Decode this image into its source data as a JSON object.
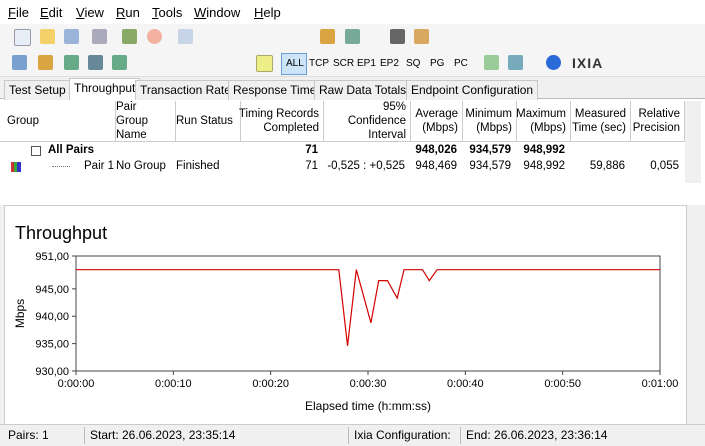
{
  "menu": [
    "File",
    "Edit",
    "View",
    "Run",
    "Tools",
    "Window",
    "Help"
  ],
  "toolbar": {
    "protocols": [
      "ALL",
      "TCP",
      "SCR",
      "EP1",
      "EP2",
      "SQ",
      "PG",
      "PC"
    ],
    "brand": "IXIA"
  },
  "tabs": [
    "Test Setup",
    "Throughput",
    "Transaction Rate",
    "Response Time",
    "Raw Data Totals",
    "Endpoint Configuration"
  ],
  "table": {
    "headers": [
      "Group",
      "Pair Group Name",
      "Run Status",
      "Timing Records Completed",
      "95% Confidence Interval",
      "Average (Mbps)",
      "Minimum (Mbps)",
      "Maximum (Mbps)",
      "Measured Time (sec)",
      "Relative Precision"
    ],
    "rows": [
      [
        "All Pairs",
        null,
        null,
        "71",
        null,
        "948,026",
        "934,579",
        "948,992",
        null,
        null
      ],
      [
        "Pair 1",
        "No Group",
        "Finished",
        "71",
        "-0,525 : +0,525",
        "948,469",
        "934,579",
        "948,992",
        "59,886",
        "0,055"
      ]
    ]
  },
  "chart": {
    "type": "line",
    "title": "Throughput",
    "x_label": "Elapsed time (h:mm:ss)",
    "y_label": "Mbps",
    "color": "#d40000",
    "x": [
      0,
      27,
      27.9,
      28.8,
      30.3,
      31.1,
      32,
      33,
      33.7,
      35.6,
      36.3,
      37.1,
      60
    ],
    "values": [
      948.5,
      948.5,
      934.6,
      948.5,
      938.8,
      946.5,
      946.5,
      943.3,
      948.5,
      948.5,
      946.5,
      948.5,
      948.5
    ],
    "xlim": [
      0,
      60
    ],
    "xticks": [
      {
        "value": 0,
        "label": "0:00:00"
      },
      {
        "value": 10,
        "label": "0:00:10"
      },
      {
        "value": 20,
        "label": "0:00:20"
      },
      {
        "value": 30,
        "label": "0:00:30"
      },
      {
        "value": 40,
        "label": "0:00:40"
      },
      {
        "value": 50,
        "label": "0:00:50"
      },
      {
        "value": 60,
        "label": "0:01:00"
      }
    ],
    "ylim": [
      930,
      951
    ],
    "yticks": [
      {
        "value": 930,
        "label": "930,00"
      },
      {
        "value": 935,
        "label": "935,00"
      },
      {
        "value": 940,
        "label": "940,00"
      },
      {
        "value": 945,
        "label": "945,00"
      },
      {
        "value": 951,
        "label": "951,00"
      }
    ]
  },
  "status": [
    "Pairs: 1",
    "Start: 26.06.2023, 23:35:14",
    "Ixia Configuration:",
    "End: 26.06.2023, 23:36:14"
  ]
}
